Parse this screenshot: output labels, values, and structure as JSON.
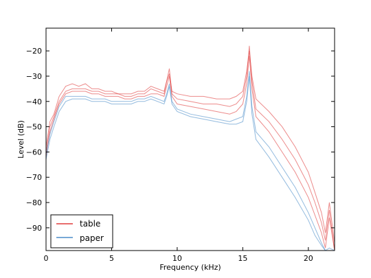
{
  "chart_data": {
    "type": "line",
    "title": "",
    "xlabel": "Frequency (kHz)",
    "ylabel": "Level (dB)",
    "xlim": [
      0,
      22
    ],
    "ylim": [
      -99,
      -11
    ],
    "xticks": [
      0,
      5,
      10,
      15,
      20
    ],
    "xtick_labels": [
      "0",
      "5",
      "10",
      "15",
      "20"
    ],
    "yticks": [
      -90,
      -80,
      -70,
      -60,
      -50,
      -40,
      -30,
      -20
    ],
    "ytick_labels": [
      "−90",
      "−80",
      "−70",
      "−60",
      "−50",
      "−40",
      "−30",
      "−20"
    ],
    "grid": false,
    "legend": {
      "position": "lower-left",
      "entries": [
        "table",
        "paper"
      ]
    },
    "series": [
      {
        "name": "table",
        "color": "#e03c3c",
        "x": [
          0,
          0.3,
          0.6,
          1,
          1.5,
          2,
          2.5,
          3,
          3.5,
          4,
          4.5,
          5,
          5.5,
          6,
          6.5,
          7,
          7.5,
          8,
          8.5,
          9,
          9.2,
          9.4,
          9.6,
          10,
          11,
          12,
          13,
          14,
          14.5,
          15,
          15.3,
          15.5,
          15.7,
          16,
          17,
          18,
          19,
          20,
          20.5,
          21,
          21.3,
          21.6,
          22
        ],
        "values": [
          -60,
          -50,
          -46,
          -40,
          -36,
          -35,
          -35,
          -35,
          -36,
          -36,
          -37,
          -37,
          -37,
          -38,
          -38,
          -37,
          -37,
          -35,
          -36,
          -37,
          -32,
          -27,
          -37,
          -39,
          -40,
          -41,
          -41,
          -42,
          -41,
          -38,
          -30,
          -18,
          -32,
          -43,
          -48,
          -55,
          -63,
          -73,
          -80,
          -88,
          -95,
          -83,
          -99
        ]
      },
      {
        "name": "table",
        "color": "#e03c3c",
        "x": [
          0,
          0.3,
          0.6,
          1,
          1.5,
          2,
          2.5,
          3,
          3.5,
          4,
          4.5,
          5,
          5.5,
          6,
          6.5,
          7,
          7.5,
          8,
          8.5,
          9,
          9.2,
          9.4,
          9.6,
          10,
          11,
          12,
          13,
          14,
          14.5,
          15,
          15.3,
          15.5,
          15.7,
          16,
          17,
          18,
          19,
          20,
          20.5,
          21,
          21.3,
          21.6,
          22
        ],
        "values": [
          -58,
          -48,
          -45,
          -38,
          -34,
          -33,
          -34,
          -33,
          -35,
          -35,
          -36,
          -36,
          -37,
          -37,
          -37,
          -36,
          -36,
          -34,
          -35,
          -36,
          -32,
          -29,
          -36,
          -37,
          -38,
          -38,
          -39,
          -39,
          -38,
          -36,
          -28,
          -20,
          -30,
          -39,
          -44,
          -50,
          -58,
          -68,
          -76,
          -84,
          -92,
          -80,
          -96
        ]
      },
      {
        "name": "table",
        "color": "#e03c3c",
        "x": [
          0,
          0.3,
          0.6,
          1,
          1.5,
          2,
          2.5,
          3,
          3.5,
          4,
          4.5,
          5,
          5.5,
          6,
          6.5,
          7,
          7.5,
          8,
          8.5,
          9,
          9.2,
          9.4,
          9.6,
          10,
          11,
          12,
          13,
          14,
          14.5,
          15,
          15.3,
          15.5,
          15.7,
          16,
          17,
          18,
          19,
          20,
          20.5,
          21,
          21.3,
          21.6,
          22
        ],
        "values": [
          -62,
          -52,
          -47,
          -41,
          -37,
          -36,
          -36,
          -36,
          -37,
          -37,
          -38,
          -38,
          -38,
          -39,
          -39,
          -38,
          -38,
          -37,
          -37,
          -38,
          -34,
          -30,
          -38,
          -41,
          -42,
          -43,
          -44,
          -45,
          -44,
          -41,
          -33,
          -22,
          -35,
          -46,
          -52,
          -60,
          -68,
          -78,
          -85,
          -92,
          -98,
          -86,
          -99
        ]
      },
      {
        "name": "paper",
        "color": "#4a8cc8",
        "x": [
          0,
          0.3,
          0.6,
          1,
          1.5,
          2,
          2.5,
          3,
          3.5,
          4,
          4.5,
          5,
          5.5,
          6,
          6.5,
          7,
          7.5,
          8,
          8.5,
          9,
          9.2,
          9.4,
          9.6,
          10,
          11,
          12,
          13,
          14,
          14.5,
          15,
          15.3,
          15.5,
          15.7,
          16,
          17,
          18,
          19,
          20,
          20.5,
          21,
          21.3,
          21.6,
          22
        ],
        "values": [
          -63,
          -55,
          -50,
          -44,
          -40,
          -39,
          -39,
          -39,
          -40,
          -40,
          -40,
          -41,
          -41,
          -41,
          -41,
          -40,
          -40,
          -39,
          -40,
          -41,
          -38,
          -34,
          -41,
          -44,
          -46,
          -47,
          -48,
          -49,
          -49,
          -48,
          -40,
          -30,
          -45,
          -55,
          -62,
          -70,
          -78,
          -87,
          -93,
          -97,
          -99,
          -99,
          -99
        ]
      },
      {
        "name": "paper",
        "color": "#4a8cc8",
        "x": [
          0,
          0.3,
          0.6,
          1,
          1.5,
          2,
          2.5,
          3,
          3.5,
          4,
          4.5,
          5,
          5.5,
          6,
          6.5,
          7,
          7.5,
          8,
          8.5,
          9,
          9.2,
          9.4,
          9.6,
          10,
          11,
          12,
          13,
          14,
          14.5,
          15,
          15.3,
          15.5,
          15.7,
          16,
          17,
          18,
          19,
          20,
          20.5,
          21,
          21.3,
          21.6,
          22
        ],
        "values": [
          -61,
          -53,
          -48,
          -42,
          -38,
          -38,
          -38,
          -38,
          -39,
          -39,
          -39,
          -40,
          -40,
          -40,
          -40,
          -39,
          -39,
          -38,
          -39,
          -40,
          -37,
          -33,
          -40,
          -43,
          -45,
          -46,
          -47,
          -48,
          -47,
          -46,
          -38,
          -28,
          -42,
          -52,
          -58,
          -66,
          -74,
          -84,
          -90,
          -96,
          -99,
          -98,
          -99
        ]
      }
    ]
  }
}
